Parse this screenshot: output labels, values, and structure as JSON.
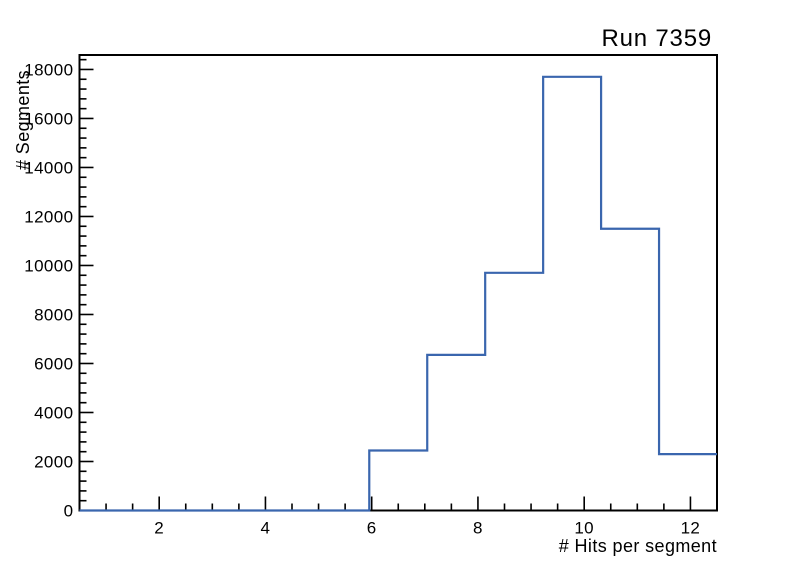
{
  "window": {
    "background": "#ffffff"
  },
  "chart_data": {
    "type": "bar",
    "subtype": "step-histogram-outline",
    "title": "Run 7359",
    "xlabel": "# Hits per segment",
    "ylabel": "# Segments",
    "xlim": [
      0.5,
      12.5
    ],
    "ylim": [
      0,
      18590
    ],
    "grid": false,
    "legend": "none",
    "line_color": "#3a66ae",
    "axis_color": "#000000",
    "text_color": "#000000",
    "bin_edges": [
      0.5,
      1.5909,
      2.6818,
      3.7727,
      4.8636,
      5.9545,
      7.0455,
      8.1364,
      9.2273,
      10.3182,
      11.4091,
      12.5
    ],
    "counts": [
      0,
      0,
      0,
      0,
      0,
      2450,
      6350,
      9700,
      17700,
      11500,
      2300
    ],
    "x_ticks": {
      "major_values": [
        2,
        4,
        6,
        8,
        10,
        12
      ],
      "labels": [
        "2",
        "4",
        "6",
        "8",
        "10",
        "12"
      ],
      "minor_step": 0.5
    },
    "y_ticks": {
      "major_values": [
        0,
        2000,
        4000,
        6000,
        8000,
        10000,
        12000,
        14000,
        16000,
        18000
      ],
      "labels": [
        "0",
        "2000",
        "4000",
        "6000",
        "8000",
        "10000",
        "12000",
        "14000",
        "16000",
        "18000"
      ],
      "minor_step": 400
    }
  }
}
